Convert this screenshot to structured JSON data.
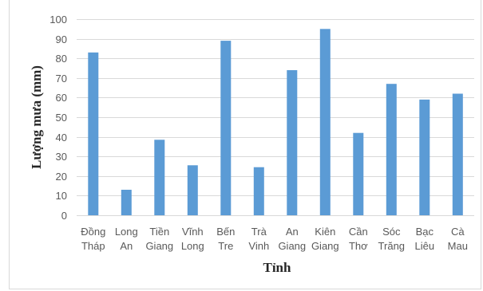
{
  "chart_data": {
    "type": "bar",
    "title": "",
    "xlabel": "Tỉnh",
    "ylabel": "Lượng mưa (mm)",
    "ylim": [
      0,
      100
    ],
    "yticks": [
      0,
      10,
      20,
      30,
      40,
      50,
      60,
      70,
      80,
      90,
      100
    ],
    "grid": true,
    "legend": "none",
    "bar_color": "#5b9bd5",
    "categories": [
      [
        "Đồng",
        "Tháp"
      ],
      [
        "Long",
        "An"
      ],
      [
        "Tiền",
        "Giang"
      ],
      [
        "Vĩnh",
        "Long"
      ],
      [
        "Bến",
        "Tre"
      ],
      [
        "Trà",
        "Vinh"
      ],
      [
        "An",
        "Giang"
      ],
      [
        "Kiên",
        "Giang"
      ],
      [
        "Cần",
        "Thơ"
      ],
      [
        "Sóc",
        "Trăng"
      ],
      [
        "Bạc",
        "Liêu"
      ],
      [
        "Cà",
        "Mau"
      ]
    ],
    "values": [
      83,
      13,
      38.5,
      25.5,
      89,
      24.5,
      74,
      95,
      42,
      67,
      59,
      62
    ]
  }
}
